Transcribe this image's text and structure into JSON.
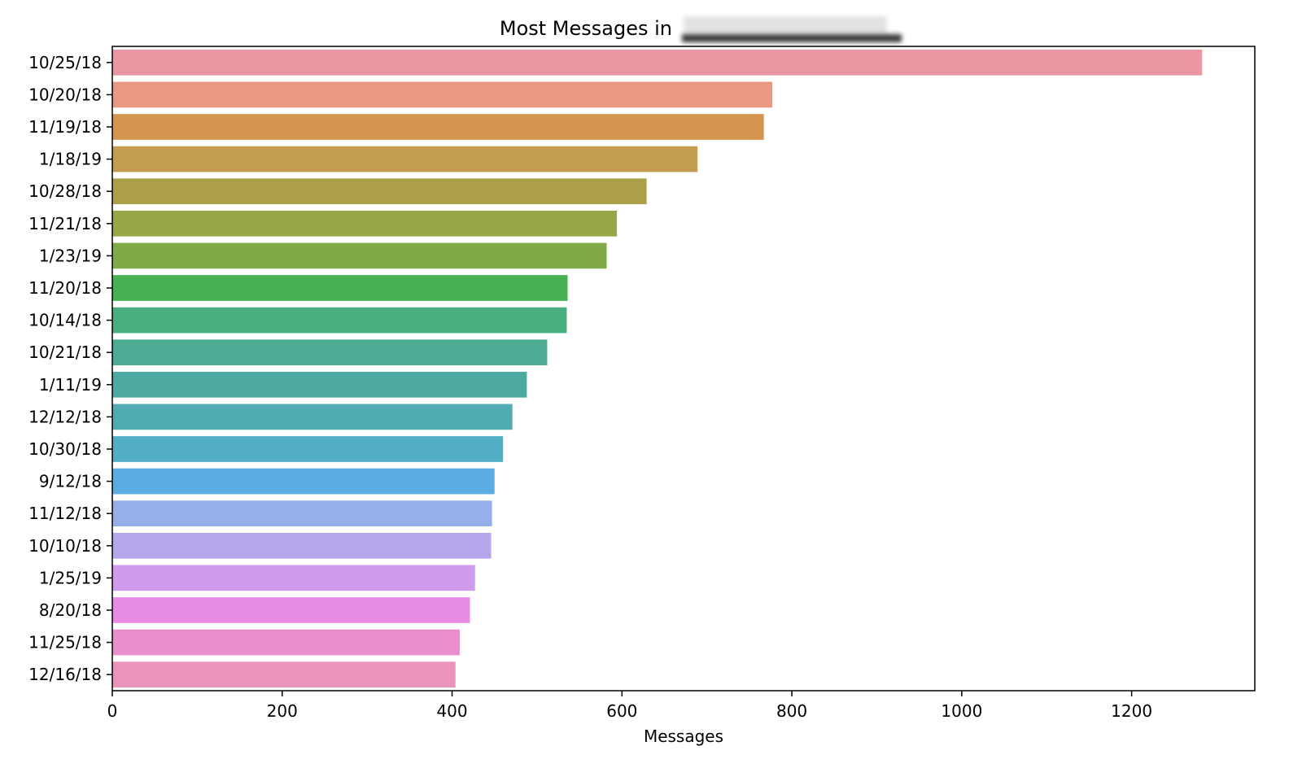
{
  "chart_data": {
    "type": "bar",
    "orientation": "horizontal",
    "title": "Most Messages in",
    "title_redacted": true,
    "xlabel": "Messages",
    "ylabel": "",
    "xlim": [
      0,
      1345
    ],
    "xticks": [
      0,
      200,
      400,
      600,
      800,
      1000,
      1200
    ],
    "grid": false,
    "categories": [
      "10/25/18",
      "10/20/18",
      "11/19/18",
      "1/18/19",
      "10/28/18",
      "11/21/18",
      "1/23/19",
      "11/20/18",
      "10/14/18",
      "10/21/18",
      "1/11/19",
      "12/12/18",
      "10/30/18",
      "9/12/18",
      "11/12/18",
      "10/10/18",
      "1/25/19",
      "8/20/18",
      "11/25/18",
      "12/16/18"
    ],
    "values": [
      1283,
      777,
      767,
      689,
      629,
      594,
      582,
      536,
      535,
      512,
      488,
      471,
      460,
      450,
      447,
      446,
      427,
      421,
      409,
      404
    ],
    "colors": [
      "#ea96a3",
      "#e99883",
      "#d5934d",
      "#c29c4f",
      "#aba047",
      "#99a646",
      "#80aa47",
      "#47b151",
      "#49ae80",
      "#4bac93",
      "#4daaa2",
      "#4facb2",
      "#52aec5",
      "#5aade0",
      "#96aeea",
      "#b7a5ec",
      "#d09bea",
      "#e88be5",
      "#e88fcc",
      "#eb93bb"
    ]
  }
}
